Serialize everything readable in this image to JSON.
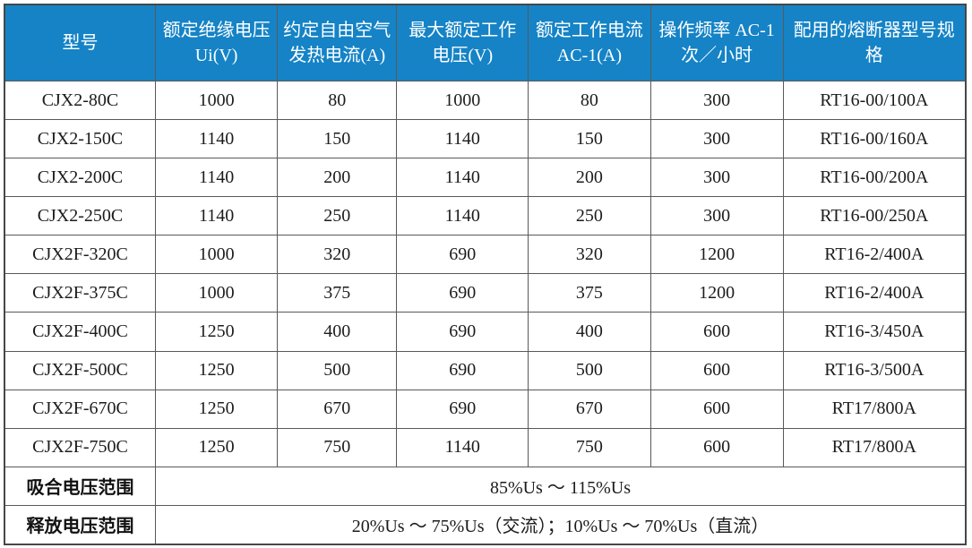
{
  "table": {
    "columns": [
      {
        "id": "model",
        "label": "型号"
      },
      {
        "id": "rated-insulation-voltage",
        "label": "额定绝缘电压 Ui(V)"
      },
      {
        "id": "conventional-free-air-thermal-current",
        "label": "约定自由空气发热电流(A)"
      },
      {
        "id": "max-rated-working-voltage",
        "label": "最大额定工作电压(V)"
      },
      {
        "id": "rated-working-current",
        "label": "额定工作电流 AC-1(A)"
      },
      {
        "id": "operating-frequency",
        "label": "操作频率 AC-1 次／小时"
      },
      {
        "id": "matching-fuse-spec",
        "label": "配用的熔断器型号规格"
      }
    ],
    "rows": [
      [
        "CJX2-80C",
        "1000",
        "80",
        "1000",
        "80",
        "300",
        "RT16-00/100A"
      ],
      [
        "CJX2-150C",
        "1140",
        "150",
        "1140",
        "150",
        "300",
        "RT16-00/160A"
      ],
      [
        "CJX2-200C",
        "1140",
        "200",
        "1140",
        "200",
        "300",
        "RT16-00/200A"
      ],
      [
        "CJX2-250C",
        "1140",
        "250",
        "1140",
        "250",
        "300",
        "RT16-00/250A"
      ],
      [
        "CJX2F-320C",
        "1000",
        "320",
        "690",
        "320",
        "1200",
        "RT16-2/400A"
      ],
      [
        "CJX2F-375C",
        "1000",
        "375",
        "690",
        "375",
        "1200",
        "RT16-2/400A"
      ],
      [
        "CJX2F-400C",
        "1250",
        "400",
        "690",
        "400",
        "600",
        "RT16-3/450A"
      ],
      [
        "CJX2F-500C",
        "1250",
        "500",
        "690",
        "500",
        "600",
        "RT16-3/500A"
      ],
      [
        "CJX2F-670C",
        "1250",
        "670",
        "690",
        "670",
        "600",
        "RT17/800A"
      ],
      [
        "CJX2F-750C",
        "1250",
        "750",
        "1140",
        "750",
        "600",
        "RT17/800A"
      ]
    ],
    "footer_rows": [
      {
        "label": "吸合电压范围",
        "value": "85%Us ～ 115%Us"
      },
      {
        "label": "释放电压范围",
        "value": "20%Us ～ 75%Us（交流）；10%Us ～ 70%Us（直流）"
      }
    ],
    "colors": {
      "header_bg": "#1583c6",
      "header_text": "#ffffff",
      "border": "#595959",
      "body_text": "#1c1c1c"
    }
  }
}
